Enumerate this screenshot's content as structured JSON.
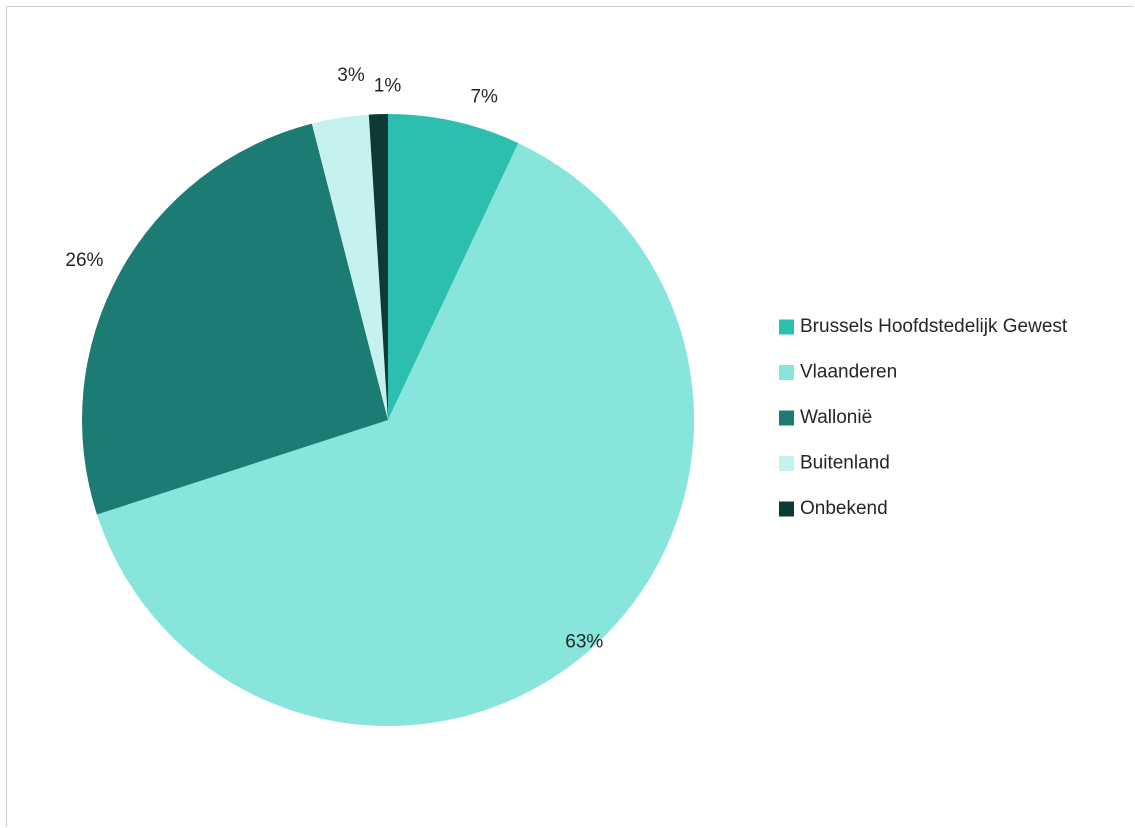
{
  "chart_data": {
    "type": "pie",
    "categories": [
      "Brussels Hoofdstedelijk Gewest",
      "Vlaanderen",
      "Wallonië",
      "Buitenland",
      "Onbekend"
    ],
    "values": [
      7,
      63,
      26,
      3,
      1
    ],
    "labels": [
      "7%",
      "63%",
      "26%",
      "3%",
      "1%"
    ],
    "colors": [
      "#2cbfaf",
      "#87e5dc",
      "#1c7b72",
      "#c5f2ef",
      "#0e3a36"
    ],
    "start_angle": "12 o'clock",
    "direction": "clockwise",
    "legend_position": "right"
  }
}
